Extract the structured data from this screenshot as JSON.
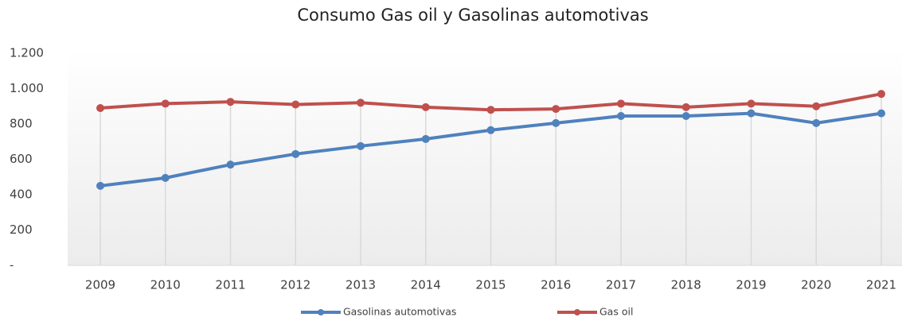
{
  "chart_data": {
    "type": "line",
    "title": "Consumo Gas oil y Gasolinas automotivas",
    "categories": [
      "2009",
      "2010",
      "2011",
      "2012",
      "2013",
      "2014",
      "2015",
      "2016",
      "2017",
      "2018",
      "2019",
      "2020",
      "2021"
    ],
    "series": [
      {
        "name": "Gasolinas automotivas",
        "color": "#4f81bd",
        "values": [
          450,
          495,
          570,
          630,
          675,
          715,
          765,
          805,
          845,
          845,
          860,
          805,
          860
        ]
      },
      {
        "name": "Gas oil",
        "color": "#c0504d",
        "values": [
          890,
          915,
          925,
          910,
          920,
          895,
          880,
          885,
          915,
          895,
          915,
          900,
          970
        ]
      }
    ],
    "ylim": [
      0,
      1200
    ],
    "yticks": [
      {
        "value": 0,
        "label": "-"
      },
      200,
      400,
      600,
      800,
      {
        "value": 1000,
        "label": "1.000"
      },
      {
        "value": 1200,
        "label": "1.200"
      }
    ],
    "legend": "bottom"
  }
}
